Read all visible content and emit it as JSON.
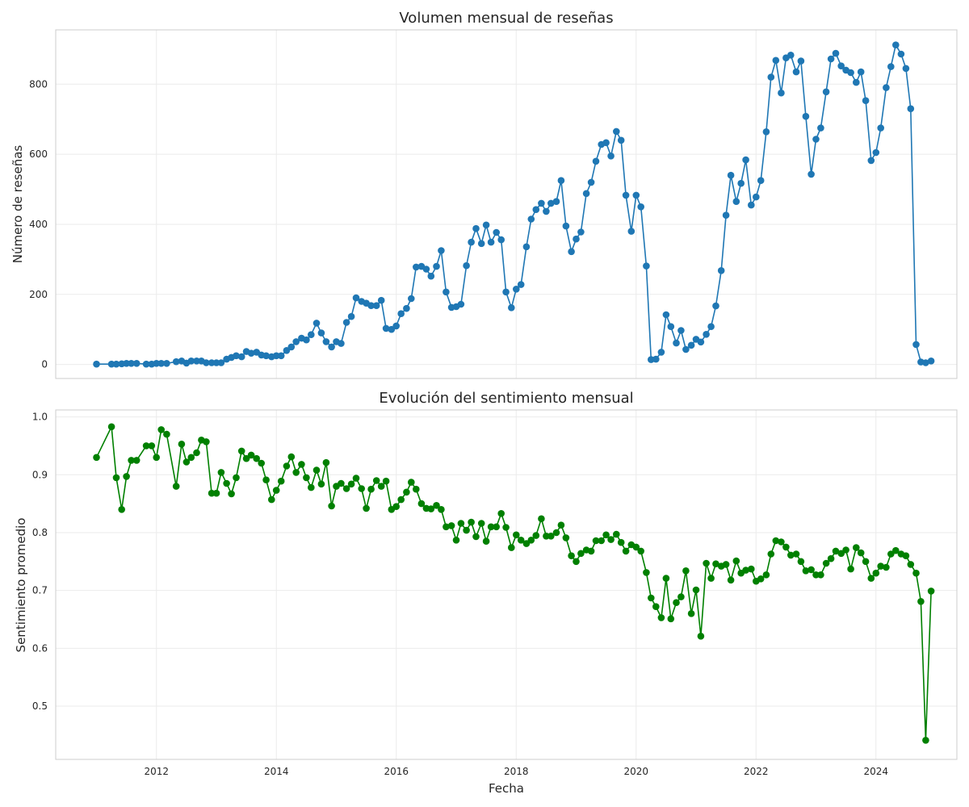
{
  "chart_data": [
    {
      "type": "line",
      "title": "Volumen mensual de reseñas",
      "xlabel": "",
      "ylabel": "Número de reseñas",
      "xlim": [
        2010.32,
        2025.35
      ],
      "ylim": [
        -40,
        955
      ],
      "yticks": [
        0,
        200,
        400,
        600,
        800
      ],
      "xticks": [
        2012,
        2014,
        2016,
        2018,
        2020,
        2022,
        2024
      ],
      "grid": true,
      "color": "#1f77b4",
      "marker": "circle",
      "x": [
        2011.0,
        2011.25,
        2011.33,
        2011.42,
        2011.5,
        2011.58,
        2011.67,
        2011.83,
        2011.92,
        2012.0,
        2012.08,
        2012.17,
        2012.33,
        2012.42,
        2012.5,
        2012.58,
        2012.67,
        2012.75,
        2012.83,
        2012.92,
        2013.0,
        2013.08,
        2013.17,
        2013.25,
        2013.33,
        2013.42,
        2013.5,
        2013.58,
        2013.67,
        2013.75,
        2013.83,
        2013.92,
        2014.0,
        2014.08,
        2014.17,
        2014.25,
        2014.33,
        2014.42,
        2014.5,
        2014.58,
        2014.67,
        2014.75,
        2014.83,
        2014.92,
        2015.0,
        2015.08,
        2015.17,
        2015.25,
        2015.33,
        2015.42,
        2015.5,
        2015.58,
        2015.67,
        2015.75,
        2015.83,
        2015.92,
        2016.0,
        2016.08,
        2016.17,
        2016.25,
        2016.33,
        2016.42,
        2016.5,
        2016.58,
        2016.67,
        2016.75,
        2016.83,
        2016.92,
        2017.0,
        2017.08,
        2017.17,
        2017.25,
        2017.33,
        2017.42,
        2017.5,
        2017.58,
        2017.67,
        2017.75,
        2017.83,
        2017.92,
        2018.0,
        2018.08,
        2018.17,
        2018.25,
        2018.33,
        2018.42,
        2018.5,
        2018.58,
        2018.67,
        2018.75,
        2018.83,
        2018.92,
        2019.0,
        2019.08,
        2019.17,
        2019.25,
        2019.33,
        2019.42,
        2019.5,
        2019.58,
        2019.67,
        2019.75,
        2019.83,
        2019.92,
        2020.0,
        2020.08,
        2020.17,
        2020.25,
        2020.33,
        2020.42,
        2020.5,
        2020.58,
        2020.67,
        2020.75,
        2020.83,
        2020.92,
        2021.0,
        2021.08,
        2021.17,
        2021.25,
        2021.33,
        2021.42,
        2021.5,
        2021.58,
        2021.67,
        2021.75,
        2021.83,
        2021.92,
        2022.0,
        2022.08,
        2022.17,
        2022.25,
        2022.33,
        2022.42,
        2022.5,
        2022.58,
        2022.67,
        2022.75,
        2022.83,
        2022.92,
        2023.0,
        2023.08,
        2023.17,
        2023.25,
        2023.33,
        2023.42,
        2023.5,
        2023.58,
        2023.67,
        2023.75,
        2023.83,
        2023.92,
        2024.0,
        2024.08,
        2024.17,
        2024.25,
        2024.33,
        2024.42,
        2024.5,
        2024.58,
        2024.67,
        2024.75,
        2024.83,
        2024.92
      ],
      "y": [
        1,
        1,
        1,
        2,
        3,
        3,
        3,
        1,
        1,
        3,
        3,
        3,
        8,
        10,
        4,
        10,
        10,
        10,
        5,
        5,
        5,
        5,
        15,
        20,
        25,
        22,
        37,
        32,
        35,
        27,
        25,
        22,
        25,
        25,
        40,
        50,
        65,
        75,
        70,
        85,
        118,
        90,
        65,
        50,
        65,
        60,
        120,
        137,
        190,
        180,
        175,
        168,
        168,
        183,
        103,
        100,
        110,
        145,
        160,
        188,
        278,
        280,
        272,
        252,
        280,
        325,
        207,
        163,
        165,
        172,
        282,
        349,
        388,
        345,
        398,
        349,
        377,
        356,
        207,
        162,
        215,
        228,
        336,
        415,
        442,
        460,
        437,
        460,
        465,
        525,
        395,
        322,
        358,
        378,
        488,
        520,
        580,
        628,
        633,
        595,
        665,
        640,
        483,
        380,
        483,
        450,
        281,
        14,
        15,
        35,
        142,
        108,
        61,
        97,
        43,
        55,
        72,
        64,
        86,
        108,
        167,
        268,
        426,
        540,
        465,
        517,
        584,
        455,
        478,
        525,
        664,
        820,
        868,
        775,
        875,
        883,
        835,
        866,
        708,
        543,
        643,
        675,
        778,
        872,
        888,
        852,
        840,
        833,
        805,
        835,
        753,
        582,
        605,
        675,
        790,
        850,
        912,
        886,
        845,
        730,
        57,
        7,
        5,
        10
      ]
    },
    {
      "type": "line",
      "title": "Evolución del sentimiento mensual",
      "xlabel": "Fecha",
      "ylabel": "Sentimiento promedio",
      "xlim": [
        2010.32,
        2025.35
      ],
      "ylim": [
        0.408,
        1.012
      ],
      "yticks": [
        0.5,
        0.6,
        0.7,
        0.8,
        0.9,
        1.0
      ],
      "xticks": [
        2012,
        2014,
        2016,
        2018,
        2020,
        2022,
        2024
      ],
      "grid": true,
      "color": "#008000",
      "marker": "circle",
      "x": [
        2011.0,
        2011.25,
        2011.33,
        2011.42,
        2011.5,
        2011.58,
        2011.67,
        2011.83,
        2011.92,
        2012.0,
        2012.08,
        2012.17,
        2012.33,
        2012.42,
        2012.5,
        2012.58,
        2012.67,
        2012.75,
        2012.83,
        2012.92,
        2013.0,
        2013.08,
        2013.17,
        2013.25,
        2013.33,
        2013.42,
        2013.5,
        2013.58,
        2013.67,
        2013.75,
        2013.83,
        2013.92,
        2014.0,
        2014.08,
        2014.17,
        2014.25,
        2014.33,
        2014.42,
        2014.5,
        2014.58,
        2014.67,
        2014.75,
        2014.83,
        2014.92,
        2015.0,
        2015.08,
        2015.17,
        2015.25,
        2015.33,
        2015.42,
        2015.5,
        2015.58,
        2015.67,
        2015.75,
        2015.83,
        2015.92,
        2016.0,
        2016.08,
        2016.17,
        2016.25,
        2016.33,
        2016.42,
        2016.5,
        2016.58,
        2016.67,
        2016.75,
        2016.83,
        2016.92,
        2017.0,
        2017.08,
        2017.17,
        2017.25,
        2017.33,
        2017.42,
        2017.5,
        2017.58,
        2017.67,
        2017.75,
        2017.83,
        2017.92,
        2018.0,
        2018.08,
        2018.17,
        2018.25,
        2018.33,
        2018.42,
        2018.5,
        2018.58,
        2018.67,
        2018.75,
        2018.83,
        2018.92,
        2019.0,
        2019.08,
        2019.17,
        2019.25,
        2019.33,
        2019.42,
        2019.5,
        2019.58,
        2019.67,
        2019.75,
        2019.83,
        2019.92,
        2020.0,
        2020.08,
        2020.17,
        2020.25,
        2020.33,
        2020.42,
        2020.5,
        2020.58,
        2020.67,
        2020.75,
        2020.83,
        2020.92,
        2021.0,
        2021.08,
        2021.17,
        2021.25,
        2021.33,
        2021.42,
        2021.5,
        2021.58,
        2021.67,
        2021.75,
        2021.83,
        2021.92,
        2022.0,
        2022.08,
        2022.17,
        2022.25,
        2022.33,
        2022.42,
        2022.5,
        2022.58,
        2022.67,
        2022.75,
        2022.83,
        2022.92,
        2023.0,
        2023.08,
        2023.17,
        2023.25,
        2023.33,
        2023.42,
        2023.5,
        2023.58,
        2023.67,
        2023.75,
        2023.83,
        2023.92,
        2024.0,
        2024.08,
        2024.17,
        2024.25,
        2024.33,
        2024.42,
        2024.5,
        2024.58,
        2024.67,
        2024.75,
        2024.83,
        2024.92
      ],
      "y": [
        0.93,
        0.983,
        0.895,
        0.84,
        0.897,
        0.925,
        0.925,
        0.95,
        0.95,
        0.93,
        0.978,
        0.97,
        0.88,
        0.953,
        0.922,
        0.93,
        0.938,
        0.96,
        0.957,
        0.868,
        0.868,
        0.904,
        0.885,
        0.867,
        0.895,
        0.941,
        0.928,
        0.934,
        0.928,
        0.92,
        0.891,
        0.857,
        0.873,
        0.889,
        0.915,
        0.931,
        0.904,
        0.918,
        0.895,
        0.878,
        0.908,
        0.884,
        0.921,
        0.846,
        0.88,
        0.885,
        0.876,
        0.884,
        0.894,
        0.876,
        0.842,
        0.875,
        0.89,
        0.88,
        0.889,
        0.84,
        0.845,
        0.857,
        0.87,
        0.887,
        0.875,
        0.85,
        0.842,
        0.841,
        0.847,
        0.84,
        0.81,
        0.812,
        0.787,
        0.816,
        0.804,
        0.818,
        0.793,
        0.816,
        0.785,
        0.81,
        0.81,
        0.833,
        0.809,
        0.774,
        0.796,
        0.787,
        0.781,
        0.787,
        0.795,
        0.824,
        0.794,
        0.794,
        0.8,
        0.813,
        0.791,
        0.76,
        0.75,
        0.764,
        0.77,
        0.768,
        0.786,
        0.786,
        0.796,
        0.788,
        0.797,
        0.783,
        0.768,
        0.779,
        0.775,
        0.768,
        0.731,
        0.687,
        0.672,
        0.653,
        0.721,
        0.651,
        0.679,
        0.689,
        0.734,
        0.66,
        0.701,
        0.621,
        0.747,
        0.721,
        0.746,
        0.742,
        0.745,
        0.718,
        0.751,
        0.73,
        0.735,
        0.737,
        0.716,
        0.72,
        0.727,
        0.763,
        0.786,
        0.784,
        0.775,
        0.761,
        0.763,
        0.75,
        0.734,
        0.736,
        0.727,
        0.727,
        0.747,
        0.755,
        0.768,
        0.764,
        0.77,
        0.737,
        0.774,
        0.765,
        0.75,
        0.721,
        0.73,
        0.742,
        0.74,
        0.763,
        0.769,
        0.763,
        0.76,
        0.745,
        0.73,
        0.681,
        0.441,
        0.699
      ]
    }
  ]
}
